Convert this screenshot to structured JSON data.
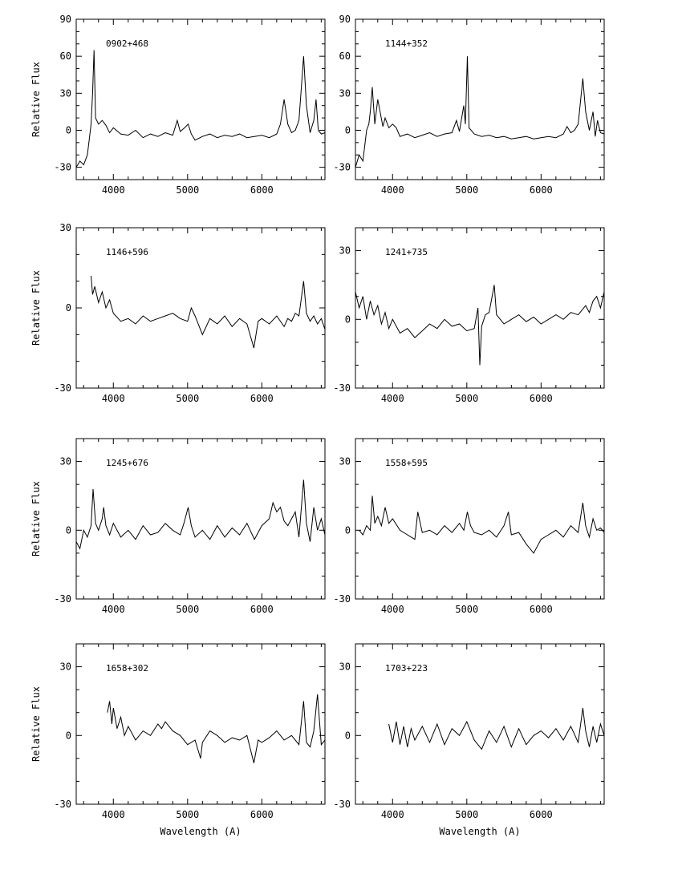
{
  "chart_data": [
    {
      "type": "line",
      "title": "0902+468",
      "ylabel": "Relative Flux",
      "xlabel": "",
      "xlim": [
        3500,
        6850
      ],
      "ylim": [
        -40,
        90
      ],
      "xticks": [
        4000,
        5000,
        6000
      ],
      "yticks": [
        -30,
        0,
        30,
        60,
        90
      ],
      "series": [
        {
          "x": [
            3500,
            3550,
            3600,
            3650,
            3680,
            3700,
            3720,
            3740,
            3760,
            3800,
            3850,
            3900,
            3950,
            4000,
            4100,
            4200,
            4300,
            4400,
            4500,
            4600,
            4700,
            4800,
            4860,
            4900,
            4960,
            5007,
            5050,
            5100,
            5200,
            5300,
            5400,
            5500,
            5600,
            5700,
            5800,
            5900,
            6000,
            6100,
            6200,
            6250,
            6300,
            6350,
            6400,
            6450,
            6500,
            6563,
            6600,
            6650,
            6700,
            6730,
            6760,
            6800,
            6850
          ],
          "y": [
            -30,
            -25,
            -28,
            -20,
            -5,
            5,
            30,
            65,
            10,
            5,
            8,
            4,
            -2,
            2,
            -3,
            -4,
            0,
            -6,
            -3,
            -5,
            -2,
            -4,
            8,
            -1,
            2,
            5,
            -3,
            -8,
            -5,
            -3,
            -6,
            -4,
            -5,
            -3,
            -6,
            -5,
            -4,
            -6,
            -3,
            5,
            25,
            5,
            -2,
            0,
            8,
            60,
            20,
            -2,
            8,
            25,
            0,
            -3,
            -2
          ]
        }
      ]
    },
    {
      "type": "line",
      "title": "1144+352",
      "ylabel": "",
      "xlabel": "",
      "xlim": [
        3500,
        6850
      ],
      "ylim": [
        -40,
        90
      ],
      "xticks": [
        4000,
        5000,
        6000
      ],
      "yticks": [
        -30,
        0,
        30,
        60,
        90
      ],
      "series": [
        {
          "x": [
            3500,
            3550,
            3600,
            3650,
            3680,
            3700,
            3727,
            3760,
            3800,
            3870,
            3900,
            3950,
            4000,
            4050,
            4100,
            4200,
            4300,
            4400,
            4500,
            4600,
            4700,
            4800,
            4861,
            4900,
            4959,
            4980,
            5007,
            5030,
            5100,
            5200,
            5300,
            5400,
            5500,
            5600,
            5700,
            5800,
            5900,
            6000,
            6100,
            6200,
            6300,
            6350,
            6400,
            6450,
            6500,
            6563,
            6600,
            6650,
            6700,
            6730,
            6760,
            6800,
            6850
          ],
          "y": [
            -30,
            -20,
            -25,
            0,
            5,
            15,
            35,
            5,
            25,
            3,
            10,
            2,
            5,
            2,
            -5,
            -3,
            -6,
            -4,
            -2,
            -5,
            -3,
            -2,
            8,
            -1,
            20,
            5,
            60,
            2,
            -3,
            -5,
            -4,
            -6,
            -5,
            -7,
            -6,
            -5,
            -7,
            -6,
            -5,
            -6,
            -3,
            3,
            -2,
            0,
            5,
            42,
            15,
            0,
            15,
            -5,
            8,
            -2,
            -3
          ]
        }
      ]
    },
    {
      "type": "line",
      "title": "1146+596",
      "ylabel": "Relative Flux",
      "xlabel": "",
      "xlim": [
        3500,
        6850
      ],
      "ylim": [
        -30,
        30
      ],
      "xticks": [
        4000,
        5000,
        6000
      ],
      "yticks": [
        -30,
        0,
        30
      ],
      "series": [
        {
          "x": [
            3700,
            3720,
            3750,
            3800,
            3850,
            3900,
            3950,
            4000,
            4100,
            4200,
            4300,
            4400,
            4500,
            4600,
            4700,
            4800,
            4900,
            5000,
            5050,
            5100,
            5200,
            5300,
            5400,
            5500,
            5600,
            5700,
            5800,
            5893,
            5950,
            6000,
            6100,
            6200,
            6300,
            6350,
            6400,
            6450,
            6500,
            6563,
            6600,
            6650,
            6700,
            6750,
            6800,
            6850
          ],
          "y": [
            12,
            5,
            8,
            2,
            6,
            0,
            3,
            -2,
            -5,
            -4,
            -6,
            -3,
            -5,
            -4,
            -3,
            -2,
            -4,
            -5,
            0,
            -3,
            -10,
            -4,
            -6,
            -3,
            -7,
            -4,
            -6,
            -15,
            -5,
            -4,
            -6,
            -3,
            -7,
            -4,
            -5,
            -2,
            -3,
            10,
            -2,
            -5,
            -3,
            -6,
            -4,
            -8
          ]
        }
      ]
    },
    {
      "type": "line",
      "title": "1241+735",
      "ylabel": "",
      "xlabel": "",
      "xlim": [
        3500,
        6850
      ],
      "ylim": [
        -30,
        40
      ],
      "xticks": [
        4000,
        5000,
        6000
      ],
      "yticks": [
        -30,
        0,
        30
      ],
      "series": [
        {
          "x": [
            3500,
            3550,
            3600,
            3650,
            3700,
            3750,
            3800,
            3850,
            3900,
            3950,
            4000,
            4100,
            4200,
            4300,
            4400,
            4500,
            4600,
            4700,
            4800,
            4900,
            5000,
            5100,
            5150,
            5175,
            5200,
            5250,
            5300,
            5370,
            5400,
            5500,
            5600,
            5700,
            5800,
            5900,
            6000,
            6100,
            6200,
            6300,
            6400,
            6500,
            6550,
            6600,
            6650,
            6700,
            6750,
            6800,
            6850
          ],
          "y": [
            12,
            5,
            10,
            0,
            8,
            2,
            6,
            -2,
            3,
            -4,
            0,
            -6,
            -4,
            -8,
            -5,
            -2,
            -4,
            0,
            -3,
            -2,
            -5,
            -4,
            5,
            -20,
            -3,
            2,
            3,
            15,
            2,
            -2,
            0,
            2,
            -1,
            1,
            -2,
            0,
            2,
            0,
            3,
            2,
            4,
            6,
            3,
            8,
            10,
            5,
            12
          ]
        }
      ]
    },
    {
      "type": "line",
      "title": "1245+676",
      "ylabel": "Relative Flux",
      "xlabel": "",
      "xlim": [
        3500,
        6850
      ],
      "ylim": [
        -30,
        40
      ],
      "xticks": [
        4000,
        5000,
        6000
      ],
      "yticks": [
        -30,
        0,
        30
      ],
      "series": [
        {
          "x": [
            3500,
            3550,
            3600,
            3650,
            3700,
            3727,
            3760,
            3800,
            3850,
            3870,
            3900,
            3950,
            4000,
            4100,
            4200,
            4300,
            4400,
            4500,
            4600,
            4700,
            4800,
            4900,
            4950,
            5007,
            5050,
            5100,
            5200,
            5300,
            5400,
            5500,
            5600,
            5700,
            5800,
            5900,
            6000,
            6100,
            6150,
            6200,
            6250,
            6300,
            6350,
            6400,
            6450,
            6500,
            6563,
            6600,
            6650,
            6700,
            6750,
            6800,
            6850
          ],
          "y": [
            -5,
            -8,
            0,
            -3,
            2,
            18,
            3,
            0,
            5,
            10,
            2,
            -2,
            3,
            -3,
            0,
            -4,
            2,
            -2,
            -1,
            3,
            0,
            -2,
            3,
            10,
            2,
            -3,
            0,
            -4,
            2,
            -3,
            1,
            -2,
            3,
            -4,
            2,
            5,
            12,
            8,
            10,
            4,
            2,
            5,
            8,
            -3,
            22,
            3,
            -5,
            10,
            0,
            5,
            -2
          ]
        }
      ]
    },
    {
      "type": "line",
      "title": "1558+595",
      "ylabel": "",
      "xlabel": "",
      "xlim": [
        3500,
        6850
      ],
      "ylim": [
        -30,
        40
      ],
      "xticks": [
        4000,
        5000,
        6000
      ],
      "yticks": [
        -30,
        0,
        30
      ],
      "series": [
        {
          "x": [
            3550,
            3600,
            3650,
            3700,
            3727,
            3760,
            3800,
            3850,
            3900,
            3950,
            4000,
            4100,
            4200,
            4300,
            4340,
            4400,
            4500,
            4600,
            4700,
            4800,
            4900,
            4960,
            5007,
            5050,
            5100,
            5200,
            5300,
            5400,
            5500,
            5560,
            5600,
            5700,
            5800,
            5900,
            6000,
            6100,
            6200,
            6300,
            6400,
            6500,
            6563,
            6600,
            6650,
            6700,
            6750,
            6800,
            6850
          ],
          "y": [
            0,
            -2,
            2,
            0,
            15,
            3,
            6,
            2,
            10,
            3,
            5,
            0,
            -2,
            -4,
            8,
            -1,
            0,
            -2,
            2,
            -1,
            3,
            0,
            8,
            2,
            -1,
            -2,
            0,
            -3,
            2,
            8,
            -2,
            -1,
            -6,
            -10,
            -4,
            -2,
            0,
            -3,
            2,
            -1,
            12,
            2,
            -3,
            5,
            0,
            1,
            -1
          ]
        }
      ]
    },
    {
      "type": "line",
      "title": "1658+302",
      "ylabel": "Relative Flux",
      "xlabel": "Wavelength (A)",
      "xlim": [
        3500,
        6850
      ],
      "ylim": [
        -30,
        40
      ],
      "xticks": [
        4000,
        5000,
        6000
      ],
      "yticks": [
        -30,
        0,
        30
      ],
      "series": [
        {
          "x": [
            3920,
            3950,
            3980,
            4000,
            4050,
            4100,
            4150,
            4200,
            4300,
            4400,
            4500,
            4600,
            4650,
            4700,
            4800,
            4900,
            5000,
            5100,
            5175,
            5200,
            5300,
            5400,
            5500,
            5600,
            5700,
            5800,
            5893,
            5950,
            6000,
            6100,
            6200,
            6300,
            6400,
            6500,
            6563,
            6600,
            6650,
            6700,
            6750,
            6800,
            6850
          ],
          "y": [
            10,
            15,
            5,
            12,
            3,
            8,
            0,
            4,
            -2,
            2,
            0,
            5,
            3,
            6,
            2,
            0,
            -4,
            -2,
            -10,
            -3,
            2,
            0,
            -3,
            -1,
            -2,
            0,
            -12,
            -2,
            -3,
            -1,
            2,
            -2,
            0,
            -4,
            15,
            -3,
            -5,
            2,
            18,
            -4,
            -2
          ]
        }
      ]
    },
    {
      "type": "line",
      "title": "1703+223",
      "ylabel": "",
      "xlabel": "Wavelength (A)",
      "xlim": [
        3500,
        6850
      ],
      "ylim": [
        -30,
        40
      ],
      "xticks": [
        4000,
        5000,
        6000
      ],
      "yticks": [
        -30,
        0,
        30
      ],
      "series": [
        {
          "x": [
            3950,
            4000,
            4050,
            4100,
            4150,
            4200,
            4250,
            4300,
            4400,
            4500,
            4600,
            4700,
            4800,
            4900,
            5000,
            5100,
            5200,
            5300,
            5400,
            5500,
            5600,
            5700,
            5800,
            5900,
            6000,
            6100,
            6200,
            6300,
            6400,
            6500,
            6563,
            6600,
            6650,
            6700,
            6750,
            6800,
            6850
          ],
          "y": [
            5,
            -3,
            6,
            -4,
            4,
            -5,
            3,
            -2,
            4,
            -3,
            5,
            -4,
            3,
            0,
            6,
            -2,
            -6,
            2,
            -3,
            4,
            -5,
            3,
            -4,
            0,
            2,
            -1,
            3,
            -2,
            4,
            -3,
            12,
            2,
            -5,
            4,
            -3,
            5,
            0
          ]
        }
      ]
    }
  ]
}
